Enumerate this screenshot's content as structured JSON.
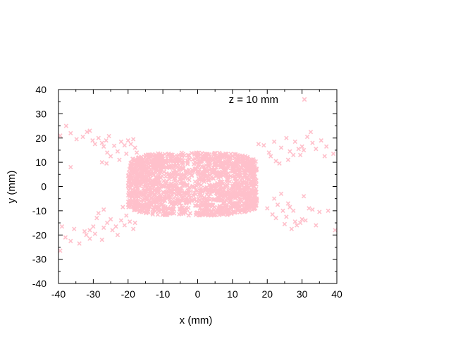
{
  "chart_data": {
    "type": "scatter",
    "title": "",
    "xlabel": "x (mm)",
    "ylabel": "y (mm)",
    "xlim": [
      -40,
      40
    ],
    "ylim": [
      -40,
      40
    ],
    "xticks": [
      "-40",
      "-30",
      "-20",
      "-10",
      "0",
      "10",
      "20",
      "30",
      "40"
    ],
    "yticks": [
      "-40",
      "-30",
      "-20",
      "-10",
      "0",
      "10",
      "20",
      "30",
      "40"
    ],
    "grid": false,
    "legend_position": "top-right",
    "series": [
      {
        "name": "z = 10 mm",
        "color": "#ffc0cb",
        "marker": "x",
        "points": [
          [
            -39.5,
            21.0
          ],
          [
            -37.8,
            25.0
          ],
          [
            -36.5,
            22.0
          ],
          [
            -34.8,
            19.5
          ],
          [
            -33.0,
            20.5
          ],
          [
            -31.8,
            22.5
          ],
          [
            -31.0,
            23.0
          ],
          [
            -30.2,
            19.0
          ],
          [
            -29.5,
            17.5
          ],
          [
            -28.5,
            20.0
          ],
          [
            -27.5,
            18.0
          ],
          [
            -27.0,
            16.5
          ],
          [
            -26.3,
            19.0
          ],
          [
            -25.5,
            20.8
          ],
          [
            -26.0,
            14.0
          ],
          [
            -25.0,
            12.5
          ],
          [
            -24.0,
            16.8
          ],
          [
            -23.0,
            14.5
          ],
          [
            -22.0,
            18.5
          ],
          [
            -21.0,
            17.0
          ],
          [
            -20.0,
            19.0
          ],
          [
            -19.2,
            17.5
          ],
          [
            -18.5,
            19.5
          ],
          [
            -18.0,
            16.0
          ],
          [
            -22.5,
            11.0
          ],
          [
            -27.5,
            10.0
          ],
          [
            -26.2,
            9.5
          ],
          [
            -36.5,
            8.0
          ],
          [
            -20.5,
            13.5
          ],
          [
            -17.5,
            14.0
          ],
          [
            -39.0,
            -16.5
          ],
          [
            -38.0,
            -21.0
          ],
          [
            -36.5,
            -22.5
          ],
          [
            -35.5,
            -17.5
          ],
          [
            -34.0,
            -23.5
          ],
          [
            -32.5,
            -18.5
          ],
          [
            -32.0,
            -20.0
          ],
          [
            -31.0,
            -21.5
          ],
          [
            -30.0,
            -16.5
          ],
          [
            -29.5,
            -19.5
          ],
          [
            -29.0,
            -13.0
          ],
          [
            -28.5,
            -11.0
          ],
          [
            -27.5,
            -22.0
          ],
          [
            -27.0,
            -17.0
          ],
          [
            -26.0,
            -15.0
          ],
          [
            -25.0,
            -13.5
          ],
          [
            -24.5,
            -18.0
          ],
          [
            -23.5,
            -16.5
          ],
          [
            -23.0,
            -20.0
          ],
          [
            -22.0,
            -14.0
          ],
          [
            -21.0,
            -16.0
          ],
          [
            -20.5,
            -12.0
          ],
          [
            -19.5,
            -14.5
          ],
          [
            -18.5,
            -17.5
          ],
          [
            -18.0,
            -15.0
          ],
          [
            -39.5,
            -26.5
          ],
          [
            -27.0,
            -9.5
          ],
          [
            -21.5,
            -8.5
          ],
          [
            -31.0,
            -18.0
          ],
          [
            -20.0,
            -7.5
          ],
          [
            17.5,
            17.5
          ],
          [
            19.0,
            17.0
          ],
          [
            20.5,
            14.0
          ],
          [
            22.0,
            18.5
          ],
          [
            22.5,
            10.5
          ],
          [
            23.5,
            9.5
          ],
          [
            24.0,
            16.0
          ],
          [
            25.5,
            20.0
          ],
          [
            26.0,
            11.0
          ],
          [
            26.5,
            14.5
          ],
          [
            27.5,
            13.0
          ],
          [
            28.0,
            18.5
          ],
          [
            29.0,
            15.5
          ],
          [
            29.5,
            13.0
          ],
          [
            30.0,
            16.5
          ],
          [
            30.5,
            15.0
          ],
          [
            31.5,
            20.5
          ],
          [
            32.5,
            22.5
          ],
          [
            33.0,
            18.0
          ],
          [
            34.0,
            15.5
          ],
          [
            35.5,
            19.0
          ],
          [
            36.5,
            12.5
          ],
          [
            37.0,
            16.5
          ],
          [
            39.0,
            13.5
          ],
          [
            21.0,
            12.5
          ],
          [
            20.0,
            -9.0
          ],
          [
            21.5,
            -11.5
          ],
          [
            22.5,
            -13.0
          ],
          [
            23.0,
            -7.5
          ],
          [
            24.0,
            -3.0
          ],
          [
            24.5,
            -10.0
          ],
          [
            25.0,
            -15.5
          ],
          [
            25.5,
            -12.5
          ],
          [
            26.0,
            -7.0
          ],
          [
            27.0,
            -17.5
          ],
          [
            27.5,
            -10.0
          ],
          [
            28.0,
            -14.5
          ],
          [
            28.5,
            -16.0
          ],
          [
            29.5,
            -15.0
          ],
          [
            30.0,
            -13.5
          ],
          [
            31.0,
            -14.0
          ],
          [
            32.0,
            -9.0
          ],
          [
            33.0,
            -9.5
          ],
          [
            34.0,
            -16.0
          ],
          [
            35.0,
            -10.5
          ],
          [
            37.5,
            -10.0
          ],
          [
            39.5,
            -18.0
          ],
          [
            30.5,
            -4.0
          ],
          [
            26.5,
            -8.5
          ],
          [
            22.0,
            -5.0
          ]
        ],
        "core_cloud": {
          "x_range": [
            -20,
            17
          ],
          "y_range": [
            -12,
            14
          ],
          "center": [
            0,
            0
          ]
        }
      }
    ]
  }
}
